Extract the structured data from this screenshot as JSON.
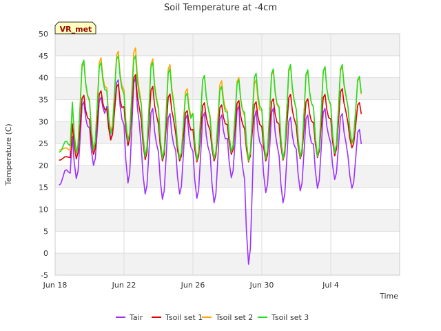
{
  "chart_data": {
    "type": "line",
    "title": "Soil Temperature at -4cm",
    "xlabel": "Time",
    "ylabel": "Temperature (C)",
    "ylim": [
      -5,
      50
    ],
    "yticks": [
      -5,
      0,
      5,
      10,
      15,
      20,
      25,
      30,
      35,
      40,
      45,
      50
    ],
    "xlim": [
      "2023-06-18",
      "2023-07-08"
    ],
    "xticks": [
      {
        "date": "2023-06-18",
        "label": "Jun 18"
      },
      {
        "date": "2023-06-22",
        "label": "Jun 22"
      },
      {
        "date": "2023-06-26",
        "label": "Jun 26"
      },
      {
        "date": "2023-06-30",
        "label": "Jun 30"
      },
      {
        "date": "2023-07-04",
        "label": "Jul 4"
      }
    ],
    "grid": true,
    "legend_placement": "bottom-center",
    "annotation": "VR_met",
    "days": [
      "2023-06-18",
      "2023-06-19",
      "2023-06-20",
      "2023-06-21",
      "2023-06-22",
      "2023-06-23",
      "2023-06-24",
      "2023-06-25",
      "2023-06-26",
      "2023-06-27",
      "2023-06-28",
      "2023-06-29",
      "2023-06-30",
      "2023-07-01",
      "2023-07-02",
      "2023-07-03",
      "2023-07-04",
      "2023-07-05"
    ],
    "series": [
      {
        "name": "Tair",
        "color": "#9b30ff",
        "daily_min": [
          15.5,
          17.0,
          20.0,
          26.0,
          16.0,
          13.5,
          12.3,
          13.5,
          12.5,
          11.5,
          17.2,
          -2.5,
          13.8,
          11.5,
          14.2,
          14.8,
          16.8,
          14.8
        ],
        "daily_max": [
          19,
          34.5,
          35.5,
          39.5,
          40.0,
          33.0,
          31.8,
          31.5,
          32.0,
          31.5,
          33.5,
          32.5,
          33.0,
          31.0,
          31.5,
          33.0,
          31.8,
          28.2
        ]
      },
      {
        "name": "Tsoil set 1",
        "color": "#dd0000",
        "daily_min": [
          21.2,
          21.5,
          22.5,
          25.8,
          24.5,
          21.3,
          21.0,
          21.0,
          20.8,
          21.0,
          22.5,
          20.8,
          21.0,
          21.2,
          21.5,
          21.8,
          22.2,
          24.0
        ],
        "daily_max": [
          22,
          36.0,
          37.0,
          38.5,
          40.7,
          38.0,
          36.3,
          32.5,
          34.3,
          33.8,
          34.8,
          34.5,
          35.2,
          36.2,
          35.2,
          36.2,
          37.5,
          34.3
        ]
      },
      {
        "name": "Tsoil set 2",
        "color": "#ffa500",
        "daily_min": [
          23.5,
          22.5,
          23.5,
          27.5,
          25.5,
          22.0,
          21.5,
          21.5,
          21.2,
          21.5,
          23.0,
          21.0,
          21.5,
          21.5,
          21.8,
          22.0,
          22.8,
          25.0
        ],
        "daily_max": [
          24,
          43.5,
          44.5,
          46.0,
          46.8,
          44.3,
          43.0,
          37.5,
          40.5,
          39.3,
          40.0,
          39.5,
          41.5,
          42.5,
          41.5,
          42.5,
          42.5,
          40.0
        ]
      },
      {
        "name": "Tsoil set 3",
        "color": "#22dd22",
        "daily_min": [
          23.0,
          22.8,
          23.5,
          27.2,
          25.5,
          22.0,
          21.5,
          21.5,
          21.3,
          21.5,
          23.0,
          21.2,
          21.5,
          21.5,
          21.8,
          22.0,
          22.8,
          25.0
        ],
        "daily_max": [
          25.5,
          44.0,
          43.5,
          45.0,
          45.0,
          43.5,
          42.0,
          36.5,
          40.5,
          38.0,
          39.5,
          41.0,
          42.0,
          43.0,
          41.8,
          42.5,
          43.0,
          40.3
        ]
      }
    ]
  }
}
